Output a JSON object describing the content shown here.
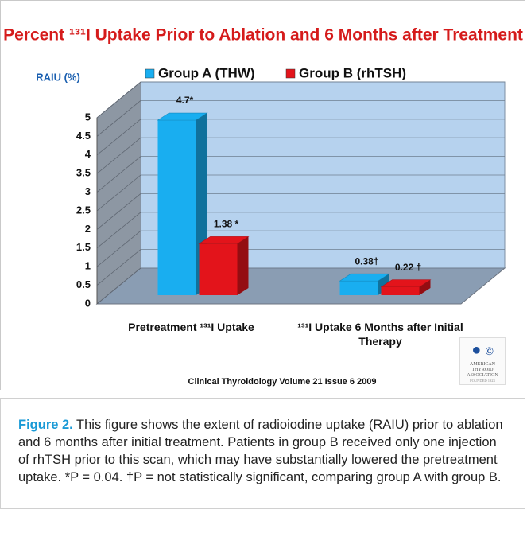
{
  "chart_data": {
    "type": "bar3d",
    "title": "Percent ¹³¹I Uptake Prior to Ablation and 6 Months after Treatment",
    "y_label": "RAIU (%)",
    "categories": [
      "Pretreatment ¹³¹I Uptake",
      "¹³¹I Uptake 6 Months after Initial Therapy"
    ],
    "series": [
      {
        "name": "Group A (THW)",
        "color": "#19aef0",
        "values": [
          4.7,
          0.38
        ],
        "value_labels": [
          "4.7*",
          "0.38†"
        ]
      },
      {
        "name": "Group B (rhTSH)",
        "color": "#e3141b",
        "values": [
          1.38,
          0.22
        ],
        "value_labels": [
          "1.38 *",
          "0.22 †"
        ]
      }
    ],
    "ylim": [
      0,
      5
    ],
    "yticks": [
      0,
      0.5,
      1,
      1.5,
      2,
      2.5,
      3,
      3.5,
      4,
      4.5,
      5
    ],
    "grid": true,
    "legend": "top",
    "source": "Clinical Thyroidology Volume 21 Issue 6 2009",
    "logo": {
      "mark": "©",
      "name": "AMERICAN THYROID ASSOCIATION",
      "founded": "FOUNDED 1923"
    }
  },
  "caption": {
    "label": "Figure 2.",
    "text": " This figure shows the extent of radioiodine uptake (RAIU) prior to ablation and 6 months after initial treatment. Patients in group B received only one injection of rhTSH prior to this scan, which may have substantially lowered the pretreatment uptake. *P = 0.04. †P = not statistically significant, comparing group A with group B."
  }
}
